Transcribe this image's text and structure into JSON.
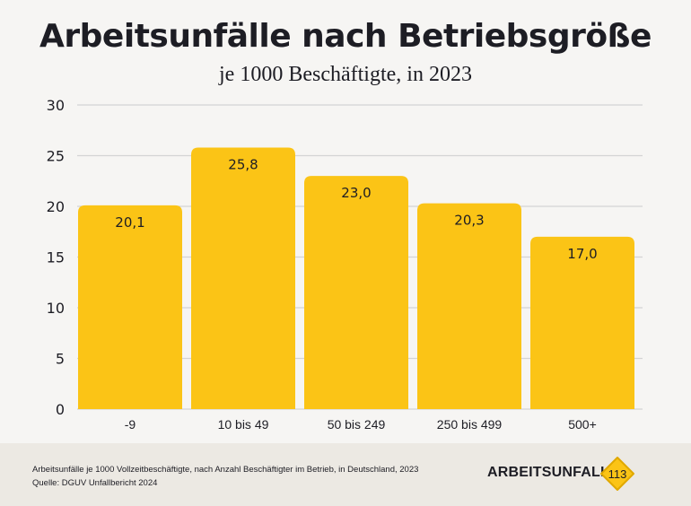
{
  "colors": {
    "bar": "#fbc416",
    "text": "#1d1d24",
    "grid": "#d4d4d4",
    "badge_fill": "#fbc416",
    "badge_stroke": "#e0a800"
  },
  "footer": {
    "note_line1": "Arbeitsunfälle je 1000 Vollzeitbeschäftigte, nach Anzahl Beschäftigter im Betrieb, in Deutschland, 2023",
    "note_line2": "Quelle: DGUV Unfallbericht 2024",
    "brand": "ARBEITSUNFALL",
    "badge_number": "113",
    "brand_icon": "diamond-sign-icon"
  },
  "chart_data": {
    "type": "bar",
    "title": "Arbeitsunfälle nach Betriebsgröße",
    "subtitle": "je 1000 Beschäftigte, in 2023",
    "xlabel": "",
    "ylabel": "",
    "categories": [
      "-9",
      "10 bis 49",
      "50 bis 249",
      "250 bis 499",
      "500+"
    ],
    "values": [
      20.1,
      25.8,
      23.0,
      20.3,
      17.0
    ],
    "value_labels": [
      "20,1",
      "25,8",
      "23,0",
      "20,3",
      "17,0"
    ],
    "ylim": [
      0,
      30
    ],
    "yticks": [
      0,
      5,
      10,
      15,
      20,
      25,
      30
    ],
    "grid": true,
    "legend": "none"
  }
}
